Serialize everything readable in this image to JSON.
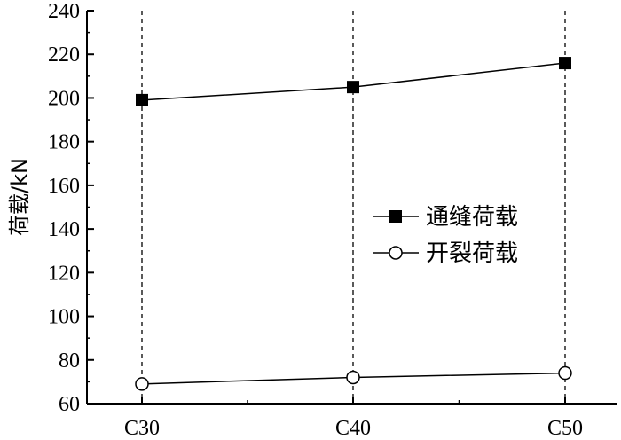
{
  "chart_data": {
    "type": "line",
    "categories": [
      "C30",
      "C40",
      "C50"
    ],
    "series": [
      {
        "name": "通缝荷载",
        "values": [
          199,
          205,
          216
        ],
        "marker": "filled-square",
        "color": "#000000"
      },
      {
        "name": "开裂荷载",
        "values": [
          69,
          72,
          74
        ],
        "marker": "open-circle",
        "color": "#000000"
      }
    ],
    "title": "",
    "xlabel": "",
    "ylabel": "荷载/kN",
    "ylim": [
      60,
      240
    ],
    "yticks": [
      60,
      80,
      100,
      120,
      140,
      160,
      180,
      200,
      220,
      240
    ],
    "grid": false,
    "vertical_dashed_guides": true,
    "legend_position": "right-middle"
  }
}
